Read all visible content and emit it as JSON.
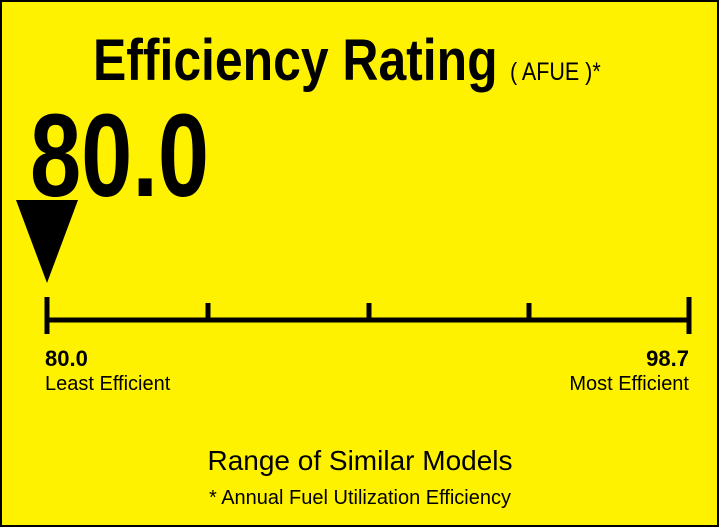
{
  "title": "Efficiency Rating",
  "title_note": "( AFUE )*",
  "rating": {
    "value": 80,
    "label": "80.0"
  },
  "scale": {
    "min": {
      "value": 80,
      "label": "80.0"
    },
    "max": {
      "value": 98.7,
      "label": "98.7"
    },
    "min_caption": "Least Efficient",
    "max_caption": "Most Efficient"
  },
  "caption": "Range of Similar Models",
  "footnote": "* Annual Fuel Utilization Efficiency"
}
